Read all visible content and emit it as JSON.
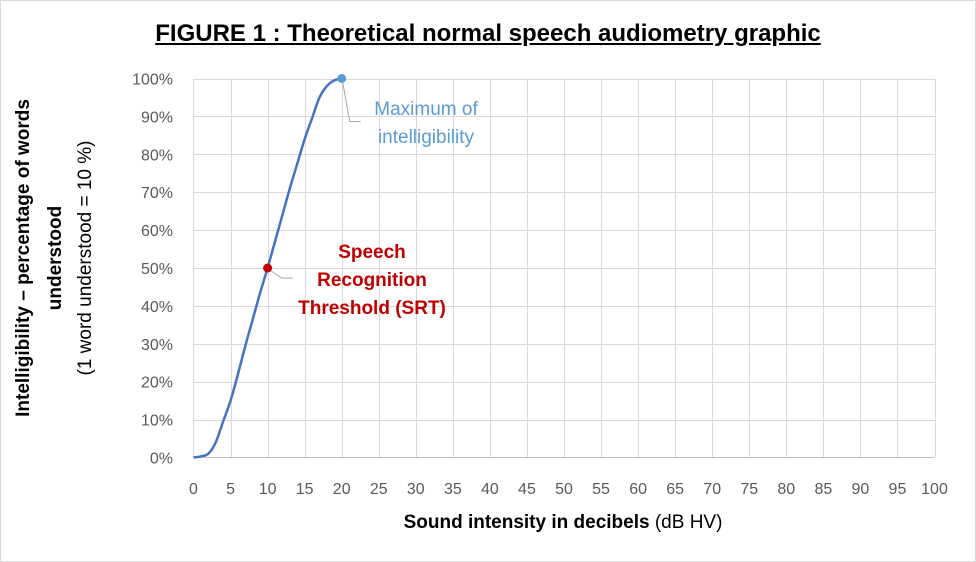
{
  "chart_data": {
    "type": "line",
    "title": "FIGURE 1 : Theoretical normal speech audiometry graphic",
    "xlabel_bold": "Sound intensity in decibels",
    "xlabel_unit": "(dB HV)",
    "ylabel_lines": [
      "Intelligibility – percentage of words",
      "understood",
      "(1 word understood = 10 %)"
    ],
    "xlim": [
      0,
      100
    ],
    "ylim": [
      0,
      100
    ],
    "x_ticks": [
      0,
      5,
      10,
      15,
      20,
      25,
      30,
      35,
      40,
      45,
      50,
      55,
      60,
      65,
      70,
      75,
      80,
      85,
      90,
      95,
      100
    ],
    "y_ticks": [
      "0%",
      "10%",
      "20%",
      "30%",
      "40%",
      "50%",
      "60%",
      "70%",
      "80%",
      "90%",
      "100%"
    ],
    "grid": true,
    "series": [
      {
        "color": "#4472c4",
        "x": [
          0,
          1,
          2,
          3,
          4,
          5,
          6,
          7,
          8,
          9,
          10,
          11,
          12,
          13,
          14,
          15,
          16,
          17,
          18,
          19,
          20
        ],
        "y": [
          0,
          0.3,
          1,
          4,
          9.5,
          15,
          22,
          29.5,
          36.5,
          43.5,
          50,
          57,
          64,
          71,
          77.5,
          84,
          89.5,
          95,
          98,
          99.5,
          100
        ]
      }
    ],
    "annotations": [
      {
        "x": 10,
        "y": 50,
        "lines": [
          "Speech",
          "Recognition",
          "Threshold (SRT)"
        ],
        "color": "#c00000",
        "bold": true
      },
      {
        "x": 20,
        "y": 100,
        "lines": [
          "Maximum of",
          "intelligibility"
        ],
        "color": "#5b9bd5",
        "bold": false
      }
    ]
  }
}
